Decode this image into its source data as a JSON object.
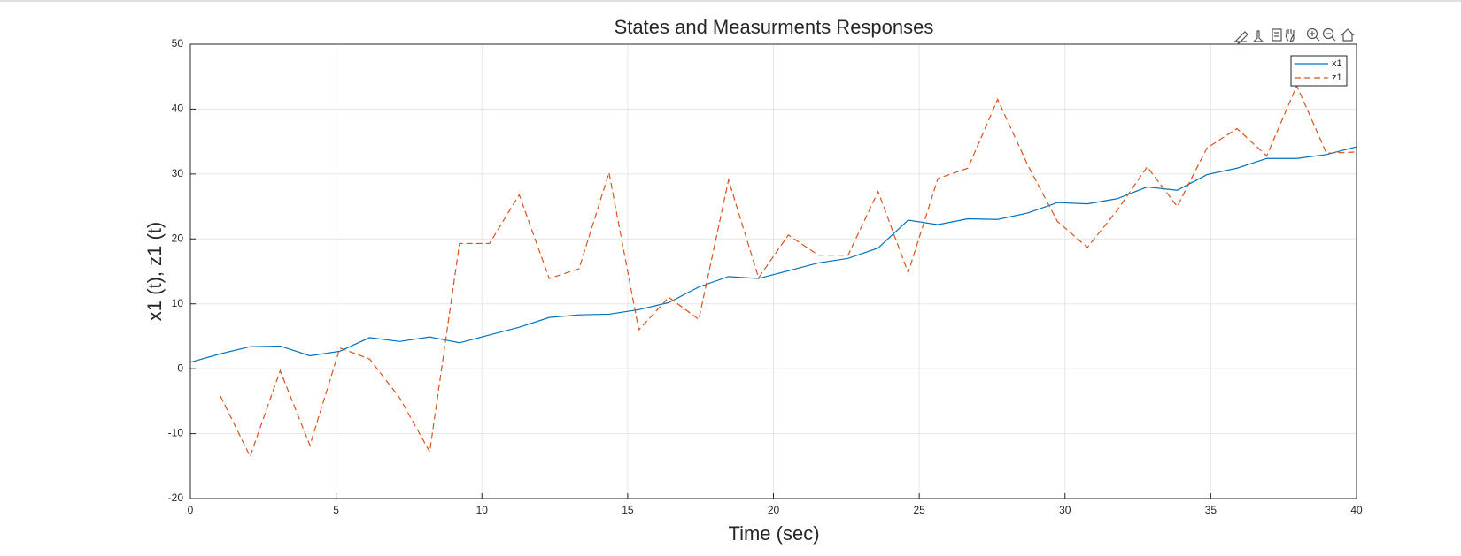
{
  "chart_data": {
    "type": "line",
    "title": "States and Measurments Responses",
    "x_label": "Time (sec)",
    "y_label": "x1 (t), z1 (t)",
    "x": [
      0,
      1.03,
      2.05,
      3.08,
      4.1,
      5.13,
      6.15,
      7.18,
      8.21,
      9.23,
      10.26,
      11.28,
      12.31,
      13.33,
      14.36,
      15.38,
      16.41,
      17.44,
      18.46,
      19.49,
      20.51,
      21.54,
      22.56,
      23.59,
      24.62,
      25.64,
      26.67,
      27.69,
      28.72,
      29.74,
      30.77,
      31.79,
      32.82,
      33.85,
      34.87,
      35.9,
      36.92,
      37.95,
      38.97,
      40
    ],
    "series": [
      {
        "name": "x1",
        "color": "#0072bd",
        "dash": false,
        "values": [
          1.0,
          2.3,
          3.4,
          3.5,
          2.0,
          2.7,
          4.8,
          4.2,
          4.9,
          4.0,
          5.2,
          6.4,
          7.9,
          8.3,
          8.4,
          9.1,
          10.2,
          12.6,
          14.2,
          13.9,
          15.1,
          16.3,
          17.0,
          18.6,
          22.9,
          22.2,
          23.1,
          23.0,
          24.0,
          25.6,
          25.4,
          26.2,
          28.0,
          27.5,
          29.9,
          30.9,
          32.4,
          32.4,
          33.0,
          34.2
        ]
      },
      {
        "name": "z1",
        "color": "#d95319",
        "dash": true,
        "values": [
          null,
          -4.2,
          -13.5,
          -0.3,
          -11.8,
          3.2,
          1.5,
          -4.5,
          -12.8,
          19.3,
          19.3,
          26.8,
          13.9,
          15.4,
          30.2,
          6.0,
          11.0,
          7.6,
          29.1,
          14.0,
          20.6,
          17.5,
          17.5,
          27.3,
          14.8,
          29.3,
          30.9,
          41.5,
          31.4,
          22.7,
          18.7,
          24.4,
          31.1,
          25.0,
          34.0,
          37.0,
          32.8,
          43.6,
          33.2,
          33.4
        ]
      }
    ],
    "xlim": [
      0,
      40
    ],
    "xticks": [
      0,
      5,
      10,
      15,
      20,
      25,
      30,
      35,
      40
    ],
    "ylim": [
      -20,
      50
    ],
    "yticks": [
      -20,
      -10,
      0,
      10,
      20,
      30,
      40,
      50
    ],
    "grid": true,
    "legend": "northeast"
  }
}
